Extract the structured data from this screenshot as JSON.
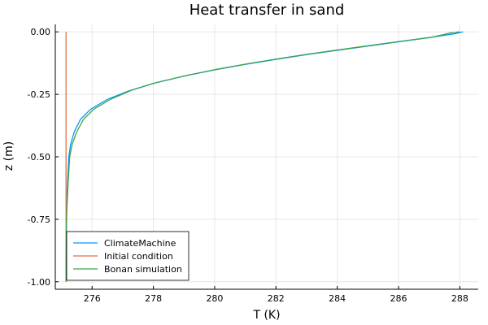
{
  "chart_data": {
    "type": "line",
    "title": "Heat transfer in sand",
    "xlabel": "T (K)",
    "ylabel": "z (m)",
    "xlim": [
      274.8,
      288.6
    ],
    "ylim": [
      -1.03,
      0.03
    ],
    "x_ticks": [
      276,
      278,
      280,
      282,
      284,
      286,
      288
    ],
    "x_tick_labels": [
      "276",
      "278",
      "280",
      "282",
      "284",
      "286",
      "288"
    ],
    "y_ticks": [
      0.0,
      -0.25,
      -0.5,
      -0.75,
      -1.0
    ],
    "y_tick_labels": [
      "0.00",
      "-0.25",
      "-0.50",
      "-0.75",
      "-1.00"
    ],
    "grid": true,
    "legend_position": "bottom-left",
    "series": [
      {
        "name": "ClimateMachine",
        "color": "#009AFA",
        "points": [
          [
            275.15,
            -1.0
          ],
          [
            275.15,
            -0.9
          ],
          [
            275.16,
            -0.8
          ],
          [
            275.17,
            -0.7
          ],
          [
            275.2,
            -0.6
          ],
          [
            275.24,
            -0.5
          ],
          [
            275.3,
            -0.45
          ],
          [
            275.42,
            -0.4
          ],
          [
            275.62,
            -0.35
          ],
          [
            275.95,
            -0.31
          ],
          [
            276.5,
            -0.27
          ],
          [
            277.2,
            -0.236
          ],
          [
            278.0,
            -0.206
          ],
          [
            279.0,
            -0.177
          ],
          [
            280.0,
            -0.152
          ],
          [
            281.0,
            -0.13
          ],
          [
            282.0,
            -0.11
          ],
          [
            283.0,
            -0.091
          ],
          [
            284.0,
            -0.074
          ],
          [
            285.0,
            -0.057
          ],
          [
            286.0,
            -0.04
          ],
          [
            287.0,
            -0.023
          ],
          [
            287.8,
            -0.008
          ],
          [
            288.1,
            0.0
          ]
        ]
      },
      {
        "name": "Initial condition",
        "color": "#E36F47",
        "points": [
          [
            275.15,
            -1.0
          ],
          [
            275.15,
            0.0
          ]
        ]
      },
      {
        "name": "Bonan simulation",
        "color": "#3DA44D",
        "points": [
          [
            275.15,
            -1.0
          ],
          [
            275.15,
            -0.9
          ],
          [
            275.16,
            -0.8
          ],
          [
            275.18,
            -0.7
          ],
          [
            275.22,
            -0.6
          ],
          [
            275.27,
            -0.5
          ],
          [
            275.35,
            -0.45
          ],
          [
            275.5,
            -0.4
          ],
          [
            275.72,
            -0.35
          ],
          [
            276.05,
            -0.31
          ],
          [
            276.6,
            -0.27
          ],
          [
            277.3,
            -0.233
          ],
          [
            278.1,
            -0.203
          ],
          [
            279.1,
            -0.174
          ],
          [
            280.1,
            -0.149
          ],
          [
            281.1,
            -0.127
          ],
          [
            282.1,
            -0.107
          ],
          [
            283.1,
            -0.088
          ],
          [
            284.1,
            -0.071
          ],
          [
            285.1,
            -0.054
          ],
          [
            286.1,
            -0.037
          ],
          [
            287.1,
            -0.021
          ],
          [
            287.7,
            -0.004
          ],
          [
            287.75,
            -0.002
          ],
          [
            287.8,
            -0.006
          ],
          [
            287.85,
            -0.003
          ],
          [
            287.9,
            -0.001
          ],
          [
            288.0,
            0.0
          ]
        ]
      }
    ]
  }
}
